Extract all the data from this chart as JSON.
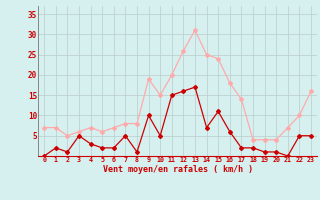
{
  "x": [
    0,
    1,
    2,
    3,
    4,
    5,
    6,
    7,
    8,
    9,
    10,
    11,
    12,
    13,
    14,
    15,
    16,
    17,
    18,
    19,
    20,
    21,
    22,
    23
  ],
  "wind_avg": [
    0,
    2,
    1,
    5,
    3,
    2,
    2,
    5,
    1,
    10,
    5,
    15,
    16,
    17,
    7,
    11,
    6,
    2,
    2,
    1,
    1,
    0,
    5,
    5
  ],
  "wind_gust": [
    7,
    7,
    5,
    6,
    7,
    6,
    7,
    8,
    8,
    19,
    15,
    20,
    26,
    31,
    25,
    24,
    18,
    14,
    4,
    4,
    4,
    7,
    10,
    16
  ],
  "color_avg": "#cc0000",
  "color_gust": "#ffaaaa",
  "xlabel": "Vent moyen/en rafales ( km/h )",
  "ylim": [
    0,
    37
  ],
  "ytick_vals": [
    5,
    10,
    15,
    20,
    25,
    30,
    35
  ],
  "ytick_labels": [
    "5",
    "10",
    "15",
    "20",
    "25",
    "30",
    "35"
  ],
  "xtick_vals": [
    0,
    1,
    2,
    3,
    4,
    5,
    6,
    7,
    8,
    9,
    10,
    11,
    12,
    13,
    14,
    15,
    16,
    17,
    18,
    19,
    20,
    21,
    22,
    23
  ],
  "background_color": "#d6f0f0",
  "grid_color": "#bbcccc",
  "tick_color": "#cc0000",
  "label_color": "#cc0000",
  "spine_color": "#cc0000"
}
